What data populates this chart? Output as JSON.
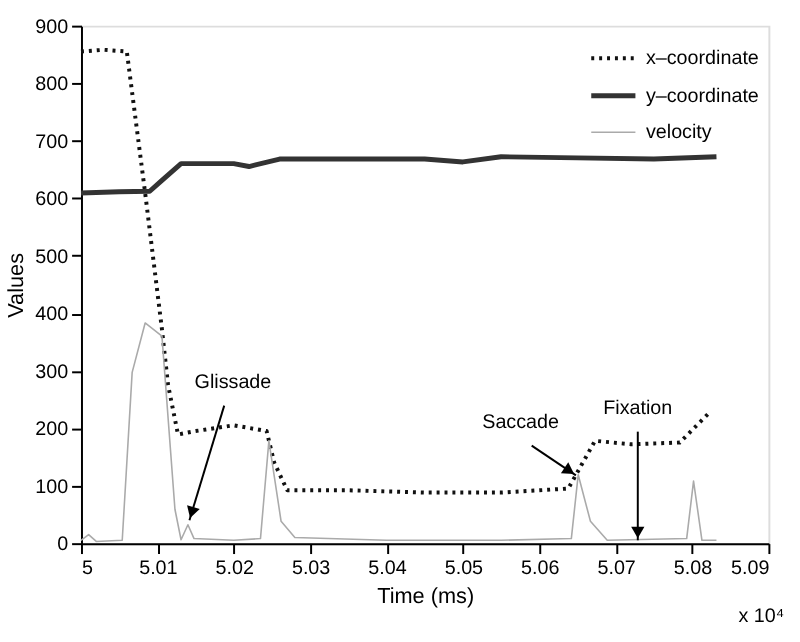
{
  "chart_data": {
    "type": "line",
    "xlabel": "Time (ms)",
    "ylabel": "Values",
    "xlim": [
      5,
      5.09
    ],
    "xticks": [
      5,
      5.01,
      5.02,
      5.03,
      5.04,
      5.05,
      5.06,
      5.07,
      5.08,
      5.09
    ],
    "ylim": [
      0,
      900
    ],
    "yticks": [
      0,
      100,
      200,
      300,
      400,
      500,
      600,
      700,
      800,
      900
    ],
    "grid": false,
    "legend": "top right",
    "marker": "none",
    "series": [
      {
        "name": "x–coordinate",
        "color": "#111111",
        "line_style": "dotted",
        "x": [
          5.0,
          5.003,
          5.006,
          5.0084,
          5.0106,
          5.0114,
          5.0127,
          5.015,
          5.02,
          5.0243,
          5.0253,
          5.027,
          5.035,
          5.045,
          5.055,
          5.0638,
          5.0673,
          5.072,
          5.0784,
          5.0822
        ],
        "values": [
          855,
          858,
          855,
          609,
          372,
          275,
          189,
          195,
          205,
          195,
          140,
          92,
          92,
          88,
          88,
          95,
          178,
          172,
          175,
          226
        ]
      },
      {
        "name": "y–coordinate",
        "color": "#333333",
        "line_style": "solid",
        "x": [
          5.0,
          5.005,
          5.009,
          5.0106,
          5.0131,
          5.02,
          5.022,
          5.026,
          5.035,
          5.045,
          5.05,
          5.055,
          5.065,
          5.075,
          5.0832
        ],
        "values": [
          609,
          611,
          612,
          631,
          660,
          660,
          655,
          668,
          668,
          668,
          663,
          672,
          670,
          668,
          672
        ]
      },
      {
        "name": "velocity",
        "color": "#aaaaaa",
        "line_style": "solid",
        "x": [
          5.0,
          5.001,
          5.002,
          5.0054,
          5.0067,
          5.0084,
          5.0106,
          5.0123,
          5.0131,
          5.014,
          5.0148,
          5.02,
          5.0235,
          5.0246,
          5.0262,
          5.028,
          5.04,
          5.055,
          5.0642,
          5.0651,
          5.0667,
          5.0689,
          5.0793,
          5.0802,
          5.0813,
          5.0832
        ],
        "values": [
          5,
          15,
          3,
          5,
          297,
          383,
          360,
          59,
          6,
          32,
          8,
          5,
          8,
          178,
          38,
          10,
          5,
          5,
          8,
          119,
          38,
          5,
          8,
          108,
          5,
          5
        ]
      }
    ],
    "annotations": [
      {
        "text": "Glissade",
        "x": 5.0142,
        "y": 40
      },
      {
        "text": "Saccade",
        "x": 5.0648,
        "y": 118
      },
      {
        "text": "Fixation",
        "x": 5.0729,
        "y": 5
      },
      "x 10⁴"
    ]
  }
}
